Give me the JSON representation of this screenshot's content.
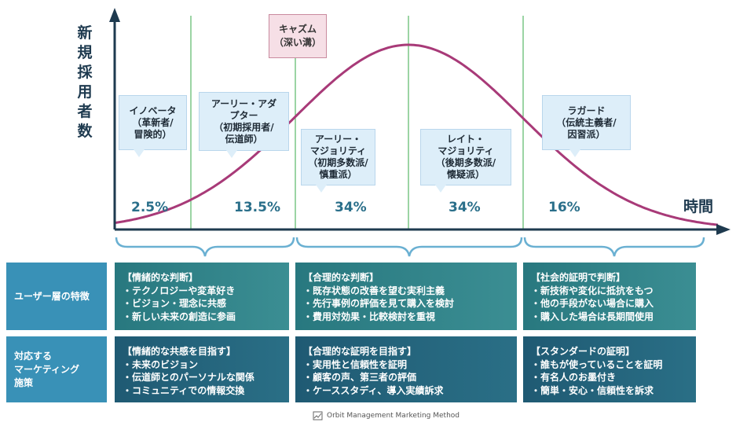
{
  "axis": {
    "y_label": "新規採用者数",
    "x_label": "時間"
  },
  "chasm_label": "キャズム\n（深い溝）",
  "segments": [
    {
      "callout": "イノベータ\n（革新者/\n冒険的）",
      "percent": "2.5%"
    },
    {
      "callout": "アーリー・アダ\nプター\n（初期採用者/\n伝道師）",
      "percent": "13.5%"
    },
    {
      "callout": "アーリー・\nマジョリティ\n（初期多数派/\n慎重派）",
      "percent": "34%"
    },
    {
      "callout": "レイト・\nマジョリティ\n（後期多数派/\n懐疑派）",
      "percent": "34%"
    },
    {
      "callout": "ラガード\n（伝統主義者/\n因習派）",
      "percent": "16%"
    }
  ],
  "rows": [
    {
      "header": "ユーザー層の特徴",
      "cells": [
        {
          "title": "【情緒的な判断】",
          "items": [
            "・テクノロジーや変革好き",
            "・ビジョン・理念に共感",
            "・新しい未来の創造に参画"
          ]
        },
        {
          "title": "【合理的な判断】",
          "items": [
            "・既存状態の改善を望む実利主義",
            "・先行事例の評価を見て購入を検討",
            "・費用対効果・比較検討を重視"
          ]
        },
        {
          "title": "【社会的証明で判断】",
          "items": [
            "・新技術や変化に抵抗をもつ",
            "・他の手段がない場合に購入",
            "・購入した場合は長期間使用"
          ]
        }
      ]
    },
    {
      "header": "対応する\nマーケティング\n施策",
      "cells": [
        {
          "title": "【情緒的な共感を目指す】",
          "items": [
            "・未来のビジョン",
            "・伝道師とのパーソナルな関係",
            "・コミュニティでの情報交換"
          ]
        },
        {
          "title": "【合理的な証明を目指す】",
          "items": [
            "・実用性と信頼性を証明",
            "・顧客の声、第三者の評価",
            "・ケーススタディ、導入実績訴求"
          ]
        },
        {
          "title": "【スタンダードの証明】",
          "items": [
            "・誰もが使っていることを証明",
            "・有名人のお墨付き",
            "・簡単・安心・信頼性を訴求"
          ]
        }
      ]
    }
  ],
  "footer": "Orbit Management Marketing Method",
  "colors": {
    "axis": "#1e3a4f",
    "curve": "#a83a78",
    "guide": "#37a84a",
    "brace": "#6ab0d2",
    "pct": "#2a6f8a"
  }
}
